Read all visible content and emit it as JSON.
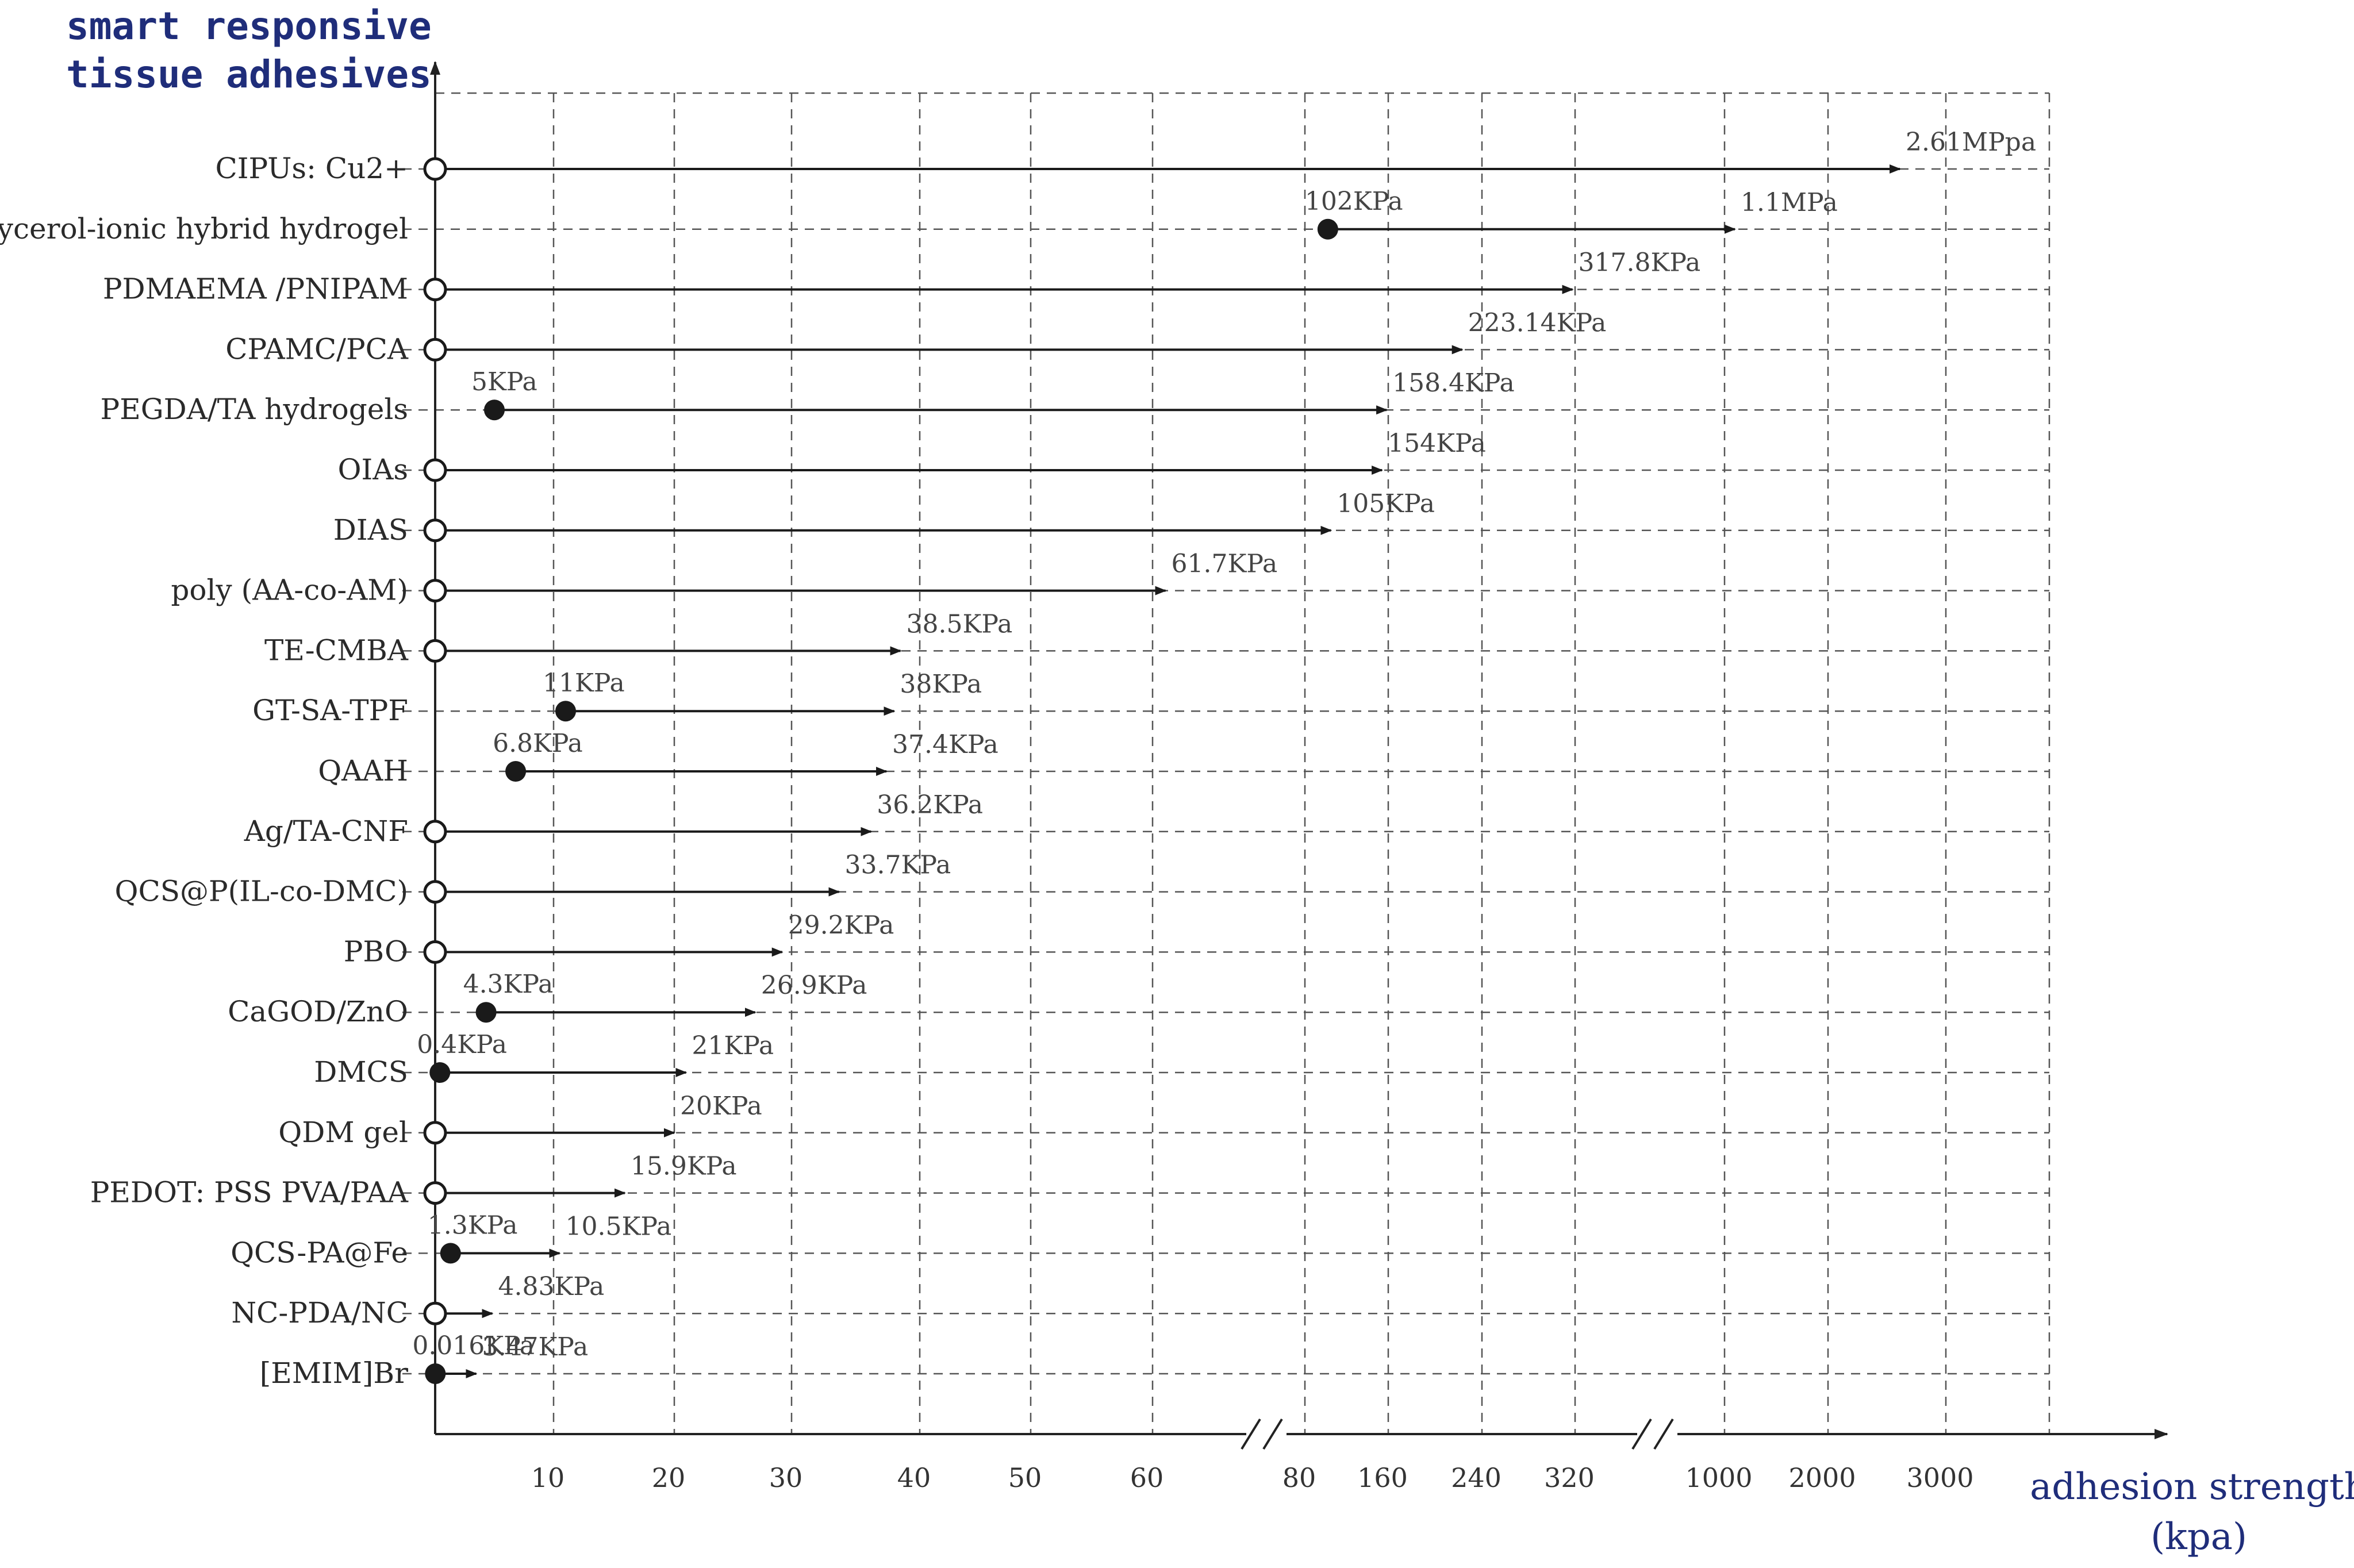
{
  "chart_data": {
    "type": "range-arrow",
    "ylabel_lines": [
      "smart responsive",
      "tissue adhesives"
    ],
    "xlabel_lines": [
      "adhesion strength",
      "(kpa)"
    ],
    "x_ticks": [
      "10",
      "20",
      "30",
      "40",
      "50",
      "60",
      "80",
      "160",
      "240",
      "320",
      "1000",
      "2000",
      "3000"
    ],
    "x_scale": "broken piecewise axis (linear 0-60, break, 80-320, break, 1000-3000)",
    "grid": "dashed",
    "rows": [
      {
        "name": "CIPUs: Cu2+",
        "start": 0,
        "end": 2610,
        "start_marker": "open",
        "start_label": "",
        "end_label": "2.61MPpa"
      },
      {
        "name": "glycerol-ionic hybrid hydrogel",
        "start": 102,
        "end": 1100,
        "start_marker": "filled",
        "start_label": "102KPa",
        "end_label": "1.1MPa"
      },
      {
        "name": "PDMAEMA /PNIPAM",
        "start": 0,
        "end": 317.8,
        "start_marker": "open",
        "start_label": "",
        "end_label": "317.8KPa"
      },
      {
        "name": "CPAMC/PCA",
        "start": 0,
        "end": 223.14,
        "start_marker": "open",
        "start_label": "",
        "end_label": "223.14KPa"
      },
      {
        "name": "PEGDA/TA hydrogels",
        "start": 5,
        "end": 158.4,
        "start_marker": "filled",
        "start_label": "5KPa",
        "end_label": "158.4KPa"
      },
      {
        "name": "OIAs",
        "start": 0,
        "end": 154,
        "start_marker": "open",
        "start_label": "",
        "end_label": "154KPa"
      },
      {
        "name": "DIAS",
        "start": 0,
        "end": 105,
        "start_marker": "open",
        "start_label": "",
        "end_label": "105KPa"
      },
      {
        "name": "poly (AA-co-AM)",
        "start": 0,
        "end": 61.7,
        "start_marker": "open",
        "start_label": "",
        "end_label": "61.7KPa"
      },
      {
        "name": "TE-CMBA",
        "start": 0,
        "end": 38.5,
        "start_marker": "open",
        "start_label": "",
        "end_label": "38.5KPa"
      },
      {
        "name": "GT-SA-TPF",
        "start": 11,
        "end": 38,
        "start_marker": "filled",
        "start_label": "11KPa",
        "end_label": "38KPa"
      },
      {
        "name": "QAAH",
        "start": 6.8,
        "end": 37.4,
        "start_marker": "filled",
        "start_label": "6.8KPa",
        "end_label": "37.4KPa"
      },
      {
        "name": "Ag/TA-CNF",
        "start": 0,
        "end": 36.2,
        "start_marker": "open",
        "start_label": "",
        "end_label": "36.2KPa"
      },
      {
        "name": "QCS@P(IL-co-DMC)",
        "start": 0,
        "end": 33.7,
        "start_marker": "open",
        "start_label": "",
        "end_label": "33.7KPa"
      },
      {
        "name": "PBO",
        "start": 0,
        "end": 29.2,
        "start_marker": "open",
        "start_label": "",
        "end_label": "29.2KPa"
      },
      {
        "name": "CaGOD/ZnO",
        "start": 4.3,
        "end": 26.9,
        "start_marker": "filled",
        "start_label": "4.3KPa",
        "end_label": "26.9KPa"
      },
      {
        "name": "DMCS",
        "start": 0.4,
        "end": 21,
        "start_marker": "filled",
        "start_label": "0.4KPa",
        "end_label": "21KPa"
      },
      {
        "name": "QDM gel",
        "start": 0,
        "end": 20,
        "start_marker": "open",
        "start_label": "",
        "end_label": "20KPa"
      },
      {
        "name": "PEDOT: PSS PVA/PAA",
        "start": 0,
        "end": 15.9,
        "start_marker": "open",
        "start_label": "",
        "end_label": "15.9KPa"
      },
      {
        "name": "QCS-PA@Fe",
        "start": 1.3,
        "end": 10.5,
        "start_marker": "filled",
        "start_label": "1.3KPa",
        "end_label": "10.5KPa"
      },
      {
        "name": "NC-PDA/NC",
        "start": 0,
        "end": 4.83,
        "start_marker": "open",
        "start_label": "",
        "end_label": "4.83KPa"
      },
      {
        "name": "[EMIM]Br",
        "start": 0.016,
        "end": 3.47,
        "start_marker": "filled",
        "start_label": "0.016KPa",
        "end_label": "3.47KPa"
      }
    ]
  }
}
